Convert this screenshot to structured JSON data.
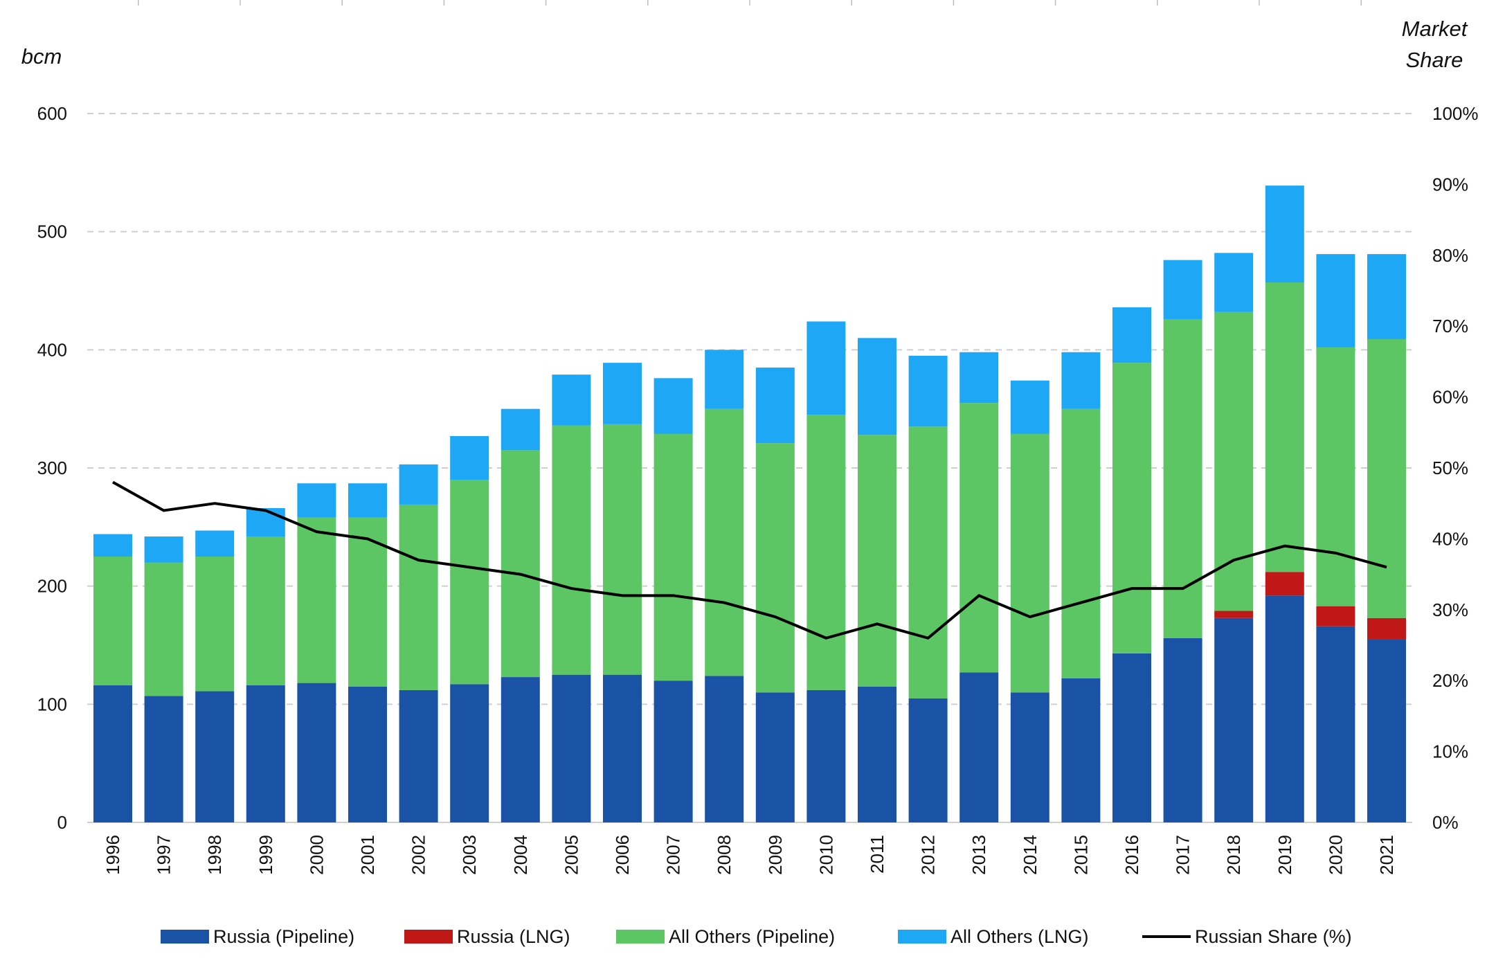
{
  "chart_data": {
    "type": "bar",
    "stacked": true,
    "title": "",
    "ylabel": "bcm",
    "y2label": [
      "Market",
      "Share"
    ],
    "ylim": [
      0,
      600
    ],
    "yticks": [
      0,
      100,
      200,
      300,
      400,
      500,
      600
    ],
    "y2lim": [
      0,
      100
    ],
    "y2ticks": [
      "0%",
      "10%",
      "20%",
      "30%",
      "40%",
      "50%",
      "60%",
      "70%",
      "80%",
      "90%",
      "100%"
    ],
    "grid": "horizontal dashed",
    "legend_position": "bottom",
    "categories": [
      "1996",
      "1997",
      "1998",
      "1999",
      "2000",
      "2001",
      "2002",
      "2003",
      "2004",
      "2005",
      "2006",
      "2007",
      "2008",
      "2009",
      "2010",
      "2011",
      "2012",
      "2013",
      "2014",
      "2015",
      "2016",
      "2017",
      "2018",
      "2019",
      "2020",
      "2021"
    ],
    "series": [
      {
        "name": "Russia (Pipeline)",
        "color": "#1a53a5",
        "axis": "left",
        "kind": "bar",
        "values": [
          116,
          107,
          111,
          116,
          118,
          115,
          112,
          117,
          123,
          125,
          125,
          120,
          124,
          110,
          112,
          115,
          105,
          127,
          110,
          122,
          143,
          156,
          173,
          192,
          166,
          155
        ]
      },
      {
        "name": "Russia (LNG)",
        "color": "#c01717",
        "axis": "left",
        "kind": "bar",
        "values": [
          0,
          0,
          0,
          0,
          0,
          0,
          0,
          0,
          0,
          0,
          0,
          0,
          0,
          0,
          0,
          0,
          0,
          0,
          0,
          0,
          0,
          0,
          6,
          20,
          17,
          18
        ]
      },
      {
        "name": "All Others (Pipeline)",
        "color": "#5bc663",
        "axis": "left",
        "kind": "bar",
        "values": [
          109,
          113,
          114,
          126,
          140,
          143,
          157,
          173,
          192,
          211,
          212,
          209,
          226,
          211,
          233,
          213,
          230,
          228,
          219,
          228,
          246,
          270,
          253,
          245,
          219,
          236
        ]
      },
      {
        "name": "All Others (LNG)",
        "color": "#1ea7f5",
        "axis": "left",
        "kind": "bar",
        "values": [
          19,
          22,
          22,
          24,
          29,
          29,
          34,
          37,
          35,
          43,
          52,
          47,
          50,
          64,
          79,
          82,
          60,
          43,
          45,
          48,
          47,
          50,
          50,
          82,
          79,
          72
        ]
      },
      {
        "name": "Russian Share (%)",
        "color": "#000000",
        "axis": "right",
        "kind": "line",
        "values": [
          48,
          44,
          45,
          44,
          41,
          40,
          37,
          36,
          35,
          33,
          32,
          32,
          31,
          29,
          26,
          28,
          26,
          32,
          29,
          31,
          33,
          33,
          37,
          39,
          38,
          36
        ]
      }
    ]
  }
}
